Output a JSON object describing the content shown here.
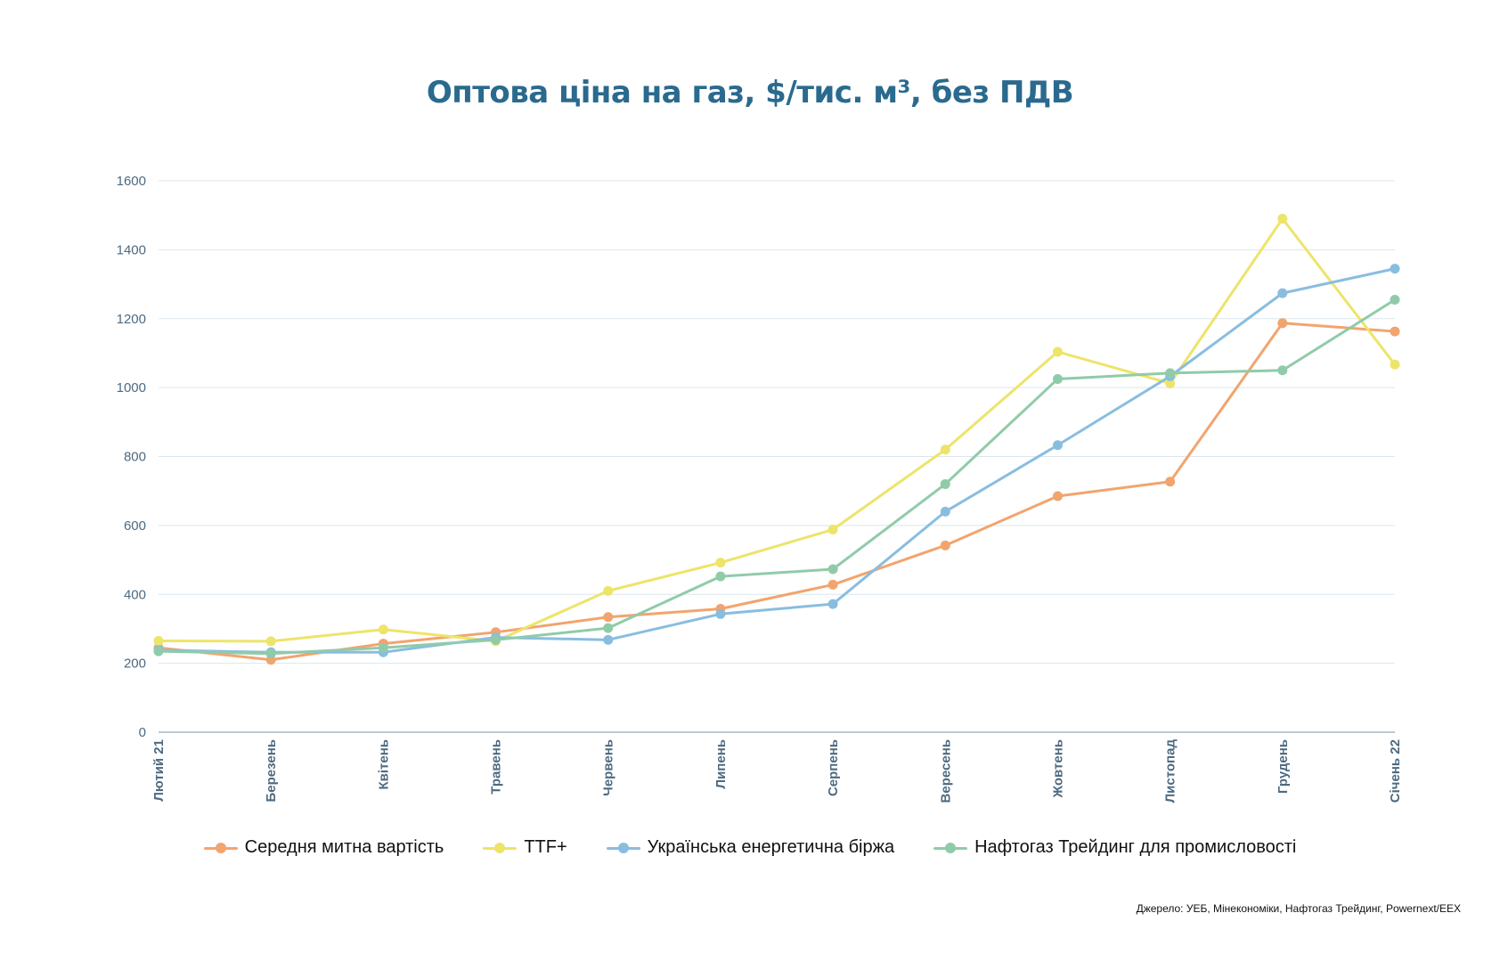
{
  "chart_data": {
    "type": "line",
    "title": "Оптова ціна на газ, $/тис. м³, без ПДВ",
    "categories": [
      "Лютий 21",
      "Березень",
      "Квітень",
      "Травень",
      "Червень",
      "Липень",
      "Серпень",
      "Вересень",
      "Жовтень",
      "Листопад",
      "Грудень",
      "Січень 22"
    ],
    "ylim": [
      0,
      1600
    ],
    "yticks": [
      0,
      200,
      400,
      600,
      800,
      1000,
      1200,
      1400,
      1600
    ],
    "grid": true,
    "legend_position": "bottom",
    "series": [
      {
        "name": "Середня митна вартість",
        "color": "#f2a46e",
        "values": [
          245,
          210,
          257,
          290,
          334,
          358,
          428,
          542,
          685,
          727,
          1187,
          1163
        ]
      },
      {
        "name": "TTF+",
        "color": "#ede46a",
        "values": [
          265,
          264,
          298,
          264,
          410,
          492,
          588,
          820,
          1104,
          1012,
          1490,
          1067
        ]
      },
      {
        "name": "Українська енергетична біржа",
        "color": "#89bde0",
        "values": [
          238,
          232,
          232,
          275,
          268,
          343,
          372,
          640,
          833,
          1033,
          1274,
          1345
        ]
      },
      {
        "name": "Нафтогаз Трейдинг для промисловості",
        "color": "#90cba9",
        "values": [
          235,
          228,
          245,
          268,
          302,
          452,
          473,
          720,
          1025,
          1042,
          1050,
          1255
        ]
      }
    ]
  },
  "source": "Джерело: УЕБ, Мінекономіки, Нафтогаз Трейдинг, Powernext/EEX"
}
